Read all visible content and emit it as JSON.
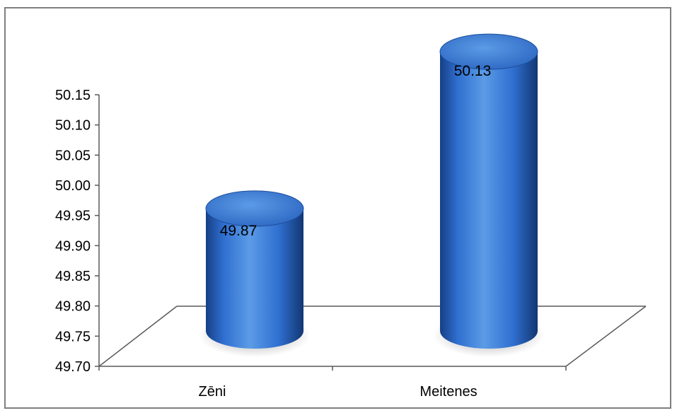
{
  "chart_data": {
    "type": "bar",
    "style": "3d-cylinder",
    "categories": [
      "Zēni",
      "Meitenes"
    ],
    "values": [
      49.87,
      50.13
    ],
    "data_labels": [
      "49.87",
      "50.13"
    ],
    "ylim": [
      49.7,
      50.15
    ],
    "ytick_step": 0.05,
    "yticks": [
      "50.15",
      "50.10",
      "50.05",
      "50.00",
      "49.95",
      "49.90",
      "49.85",
      "49.80",
      "49.75",
      "49.70"
    ],
    "title": "",
    "xlabel": "",
    "ylabel": "",
    "grid": false,
    "legend": "none",
    "colors": {
      "bar_light": "#5b9be6",
      "bar_mid": "#2f6fd0",
      "bar_dark": "#163f86",
      "axis": "#595959",
      "frame": "#7f7f7f"
    }
  }
}
